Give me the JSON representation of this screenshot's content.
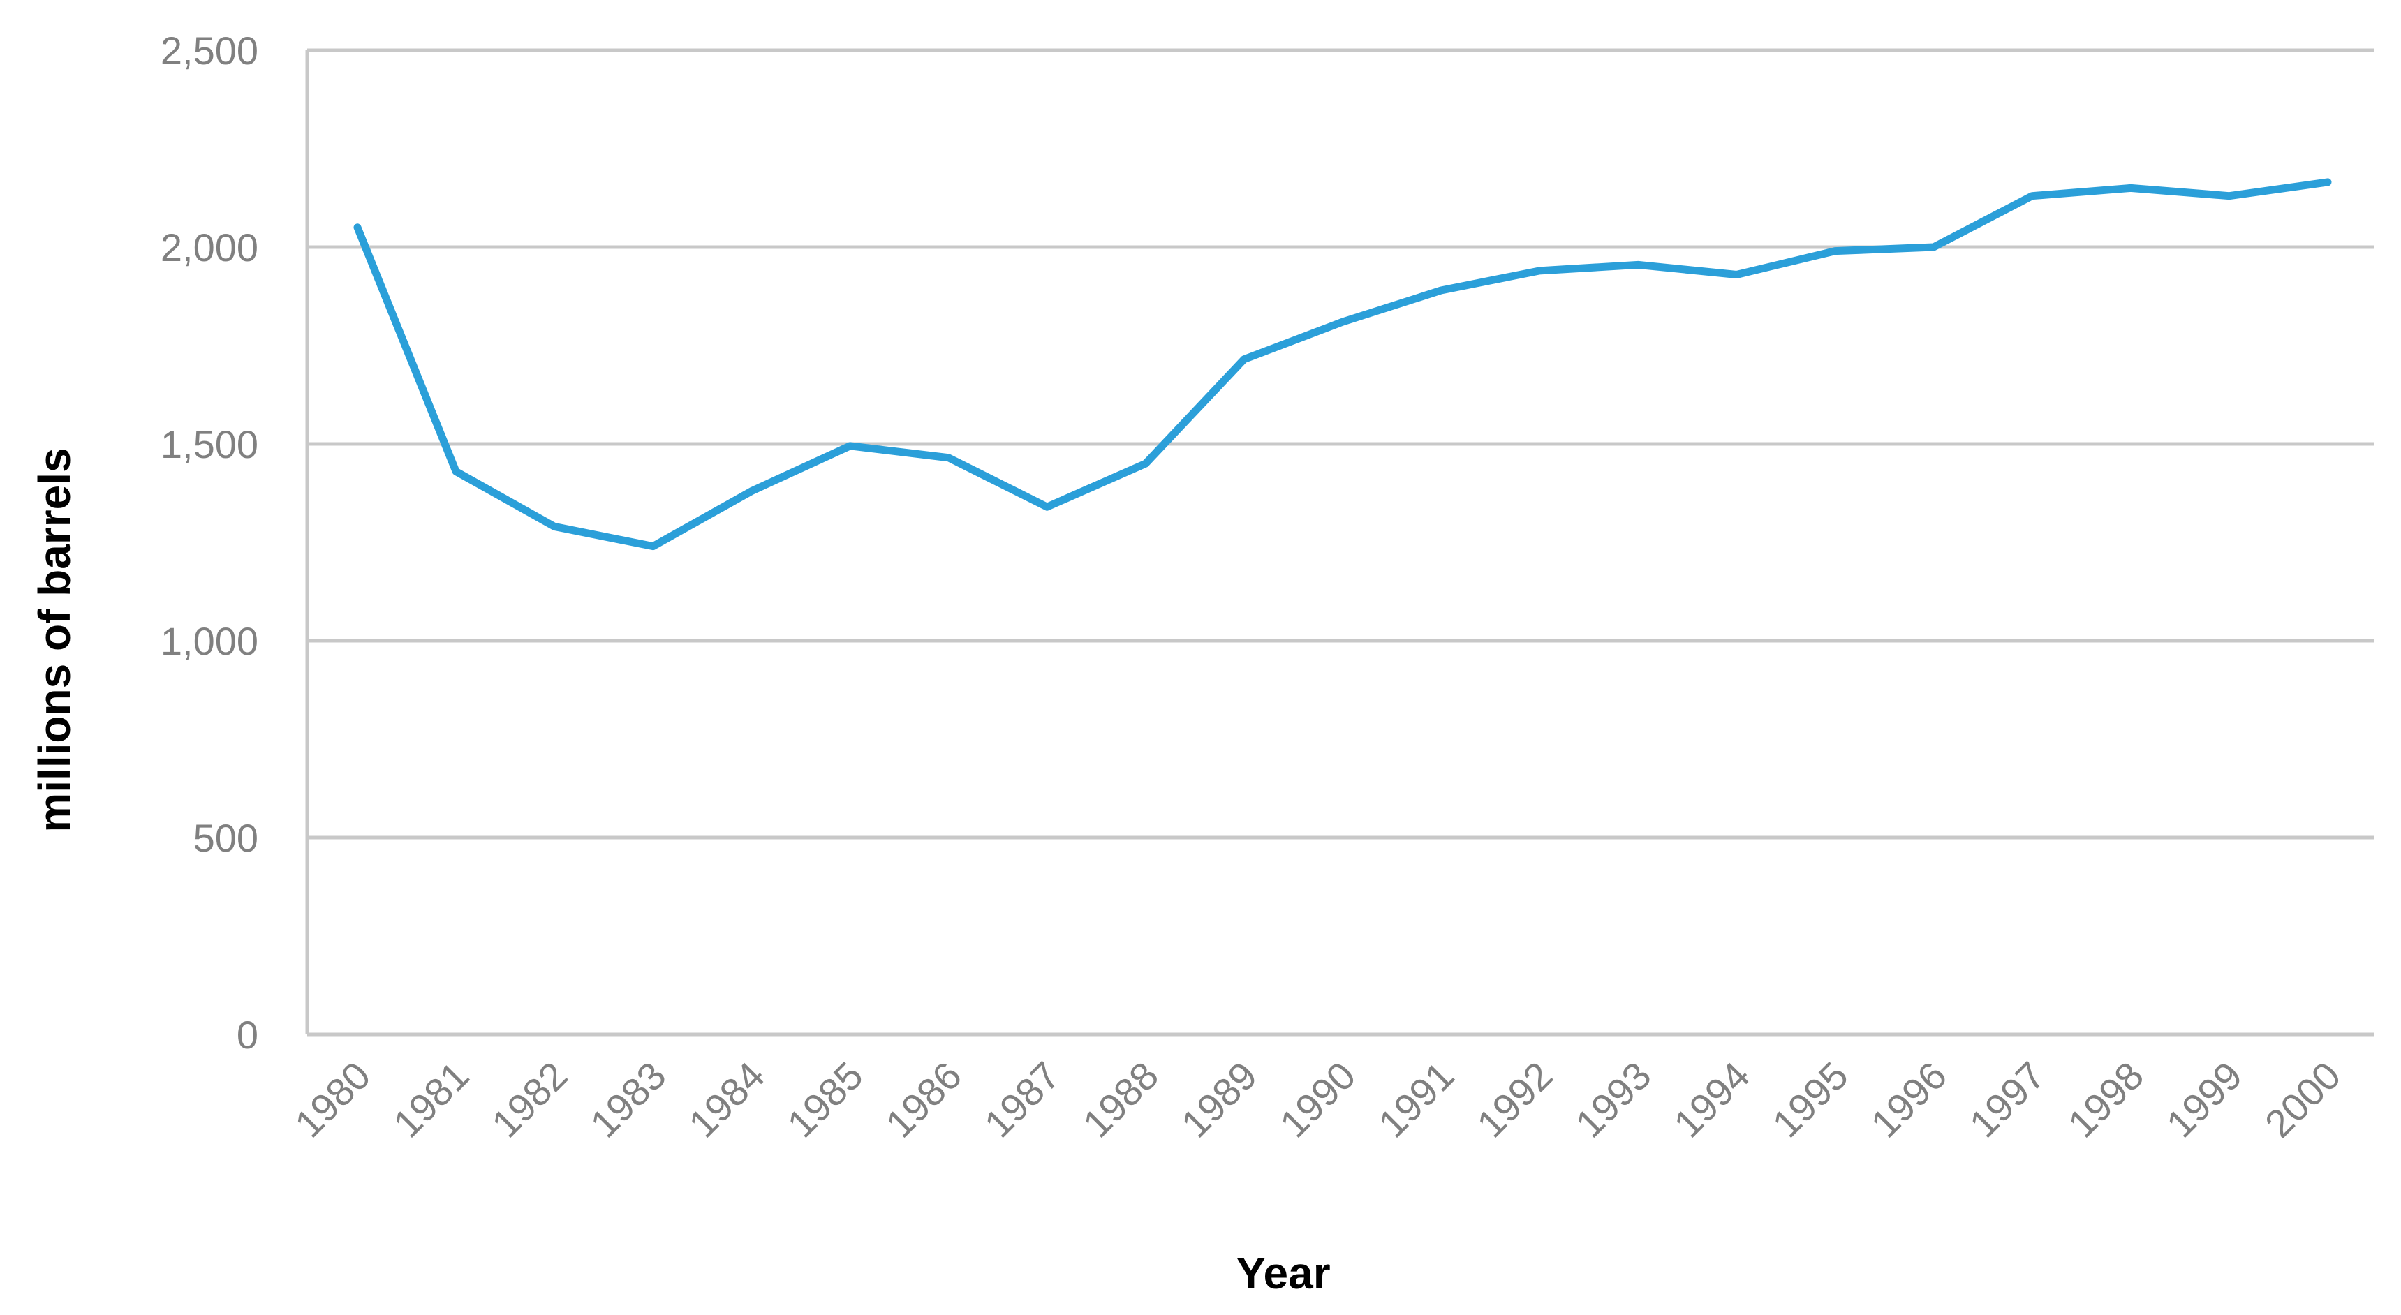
{
  "chart_data": {
    "type": "line",
    "xlabel": "Year",
    "ylabel": "millions of barrels",
    "ylim": [
      0,
      2500
    ],
    "yticks": [
      0,
      500,
      1000,
      1500,
      2000,
      2500
    ],
    "ytick_labels": [
      "0",
      "500",
      "1,000",
      "1,500",
      "2,000",
      "2,500"
    ],
    "categories": [
      "1980",
      "1981",
      "1982",
      "1983",
      "1984",
      "1985",
      "1986",
      "1987",
      "1988",
      "1989",
      "1990",
      "1991",
      "1992",
      "1993",
      "1994",
      "1995",
      "1996",
      "1997",
      "1998",
      "1999",
      "2000"
    ],
    "series": [
      {
        "values": [
          2050,
          1430,
          1290,
          1240,
          1380,
          1495,
          1465,
          1340,
          1450,
          1715,
          1810,
          1890,
          1940,
          1955,
          1930,
          1990,
          2000,
          2130,
          2150,
          2130,
          2165
        ]
      }
    ],
    "grid": true,
    "legend": "none"
  },
  "colors": {
    "series": "#2B9FD9",
    "grid": "#c8c8c8",
    "tick_text": "#808080",
    "title_text": "#000000"
  }
}
